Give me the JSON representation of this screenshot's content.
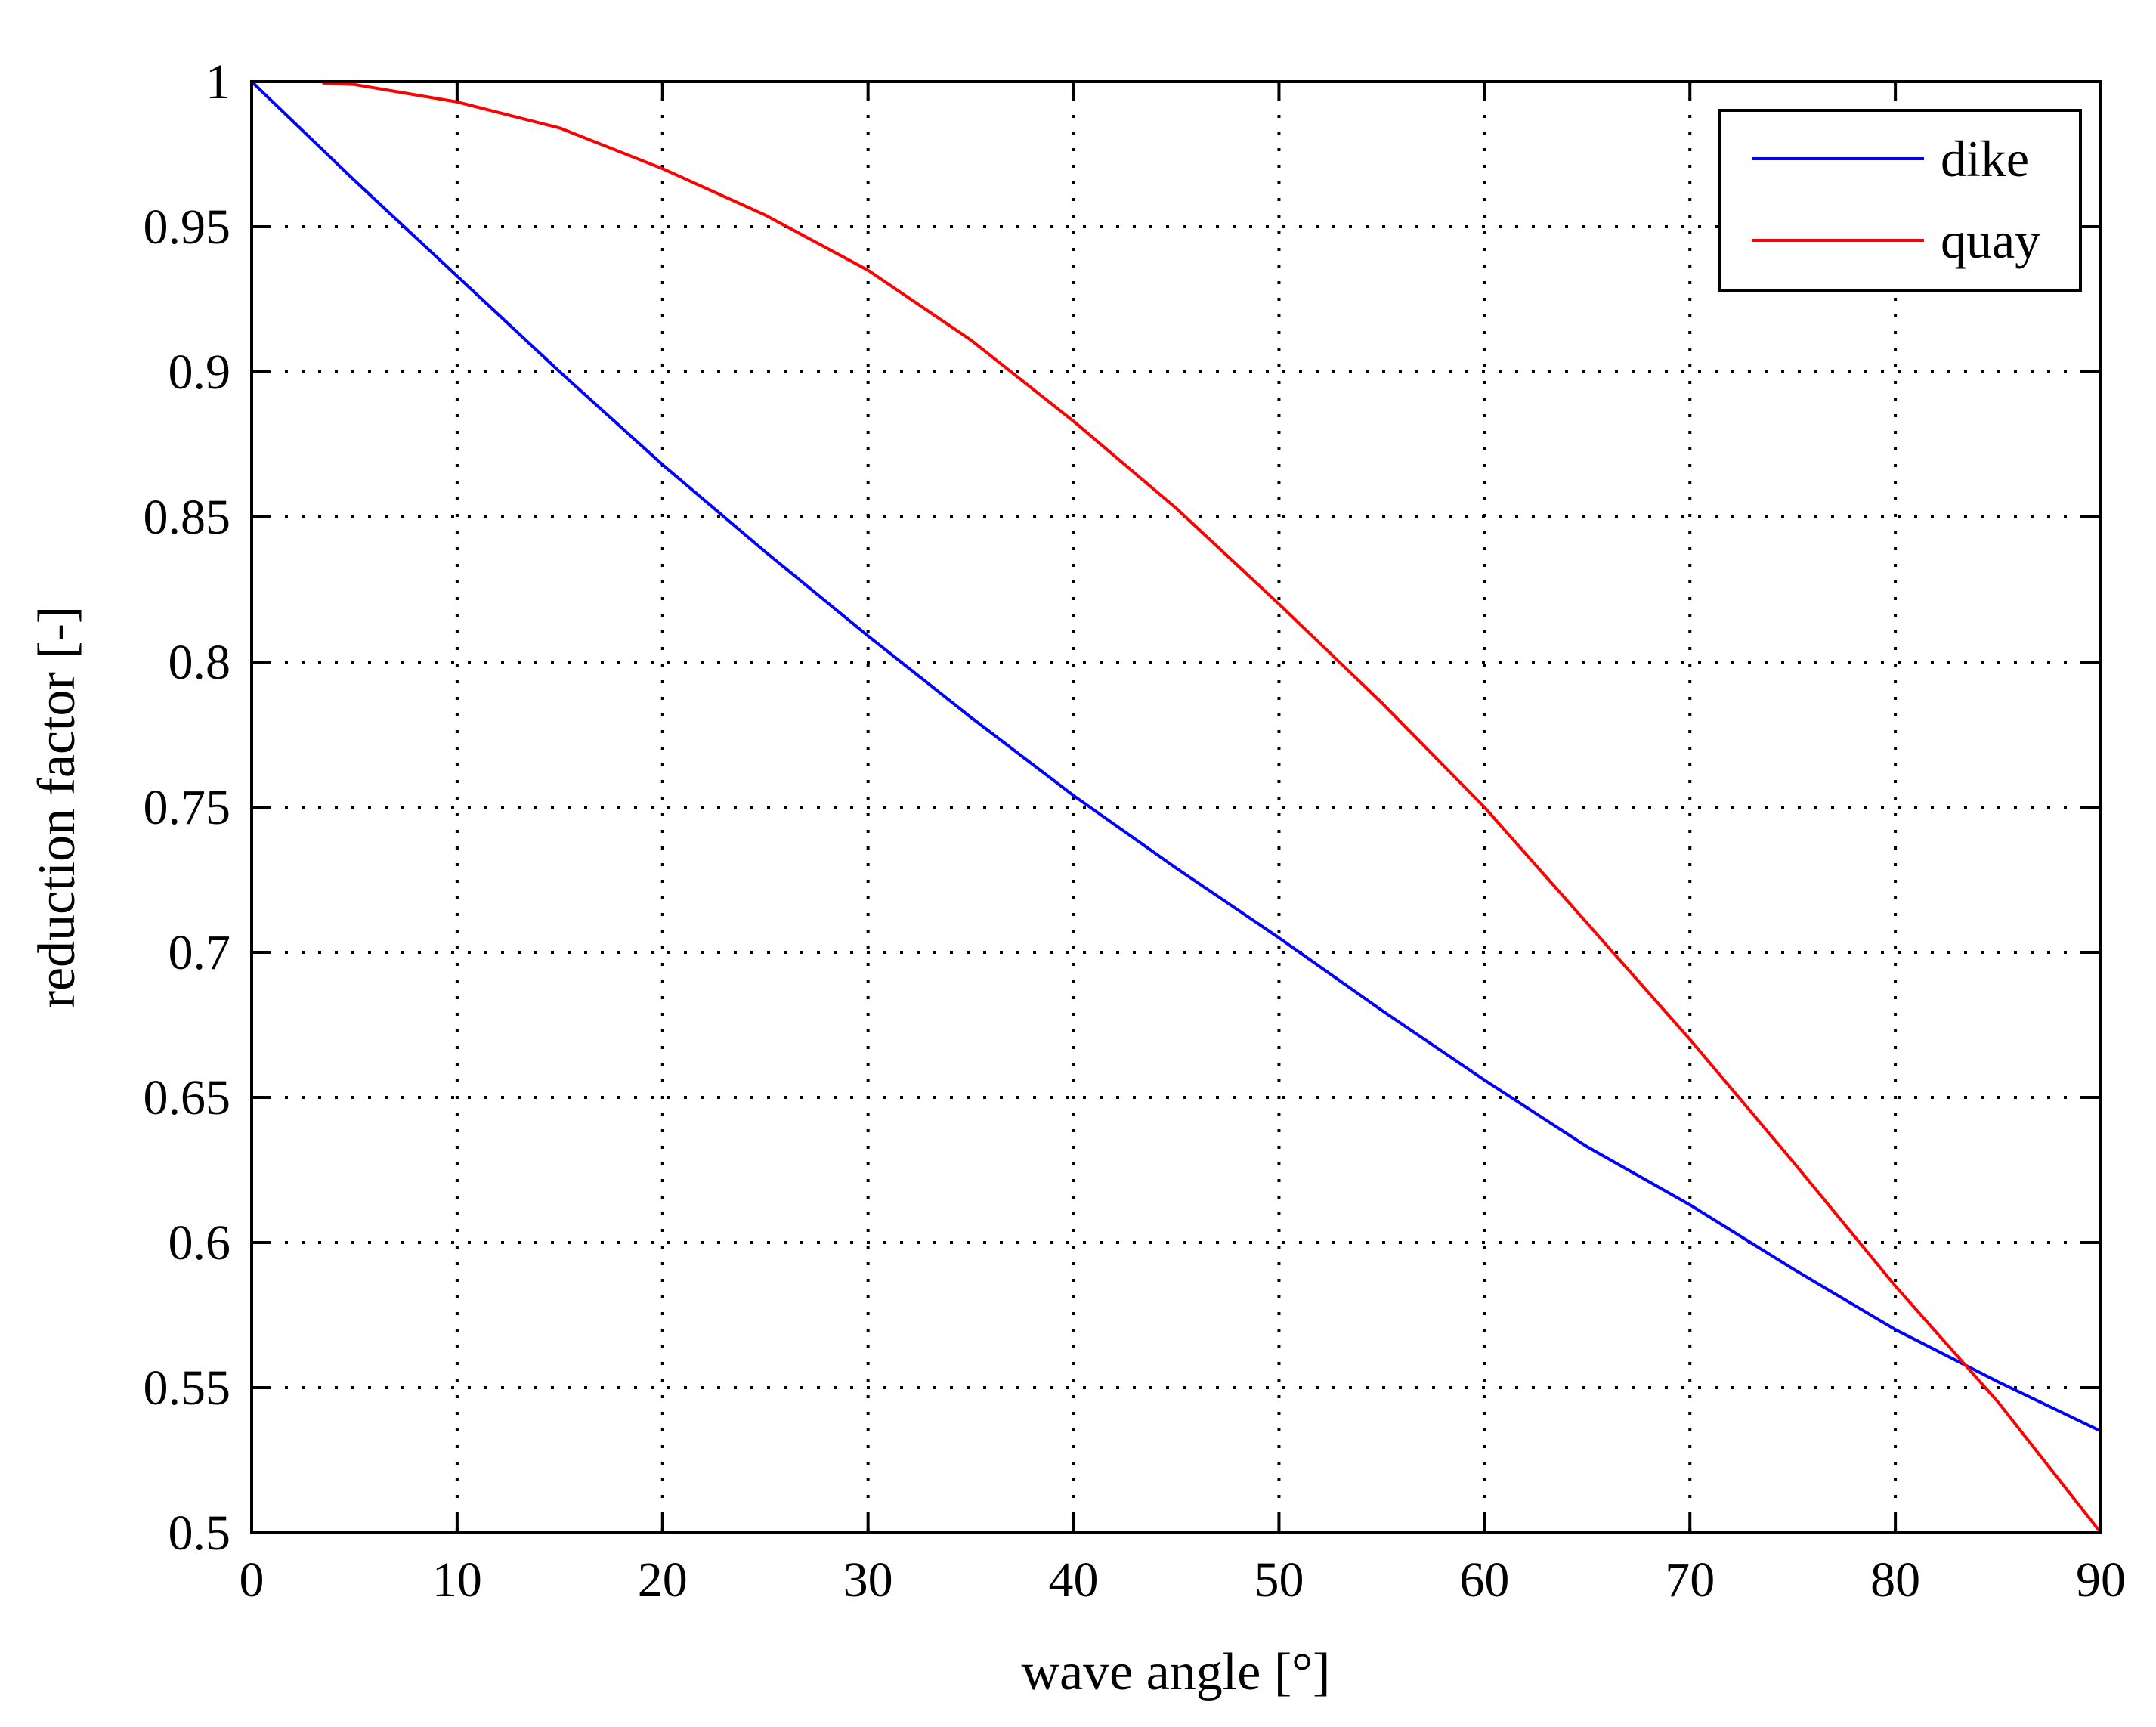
{
  "chart_data": {
    "type": "line",
    "title": "",
    "xlabel": "wave angle [°]",
    "ylabel": "reduction factor [-]",
    "xlim": [
      0,
      90
    ],
    "ylim": [
      0.5,
      1
    ],
    "grid": true,
    "legend_position": "top-right",
    "x_ticks": [
      0,
      10,
      20,
      30,
      40,
      50,
      60,
      70,
      80,
      90
    ],
    "x_tick_labels": [
      "0",
      "10",
      "20",
      "30",
      "40",
      "50",
      "60",
      "70",
      "80",
      "90"
    ],
    "y_ticks": [
      0.5,
      0.55,
      0.6,
      0.65,
      0.7,
      0.75,
      0.8,
      0.85,
      0.9,
      0.95,
      1
    ],
    "y_tick_labels": [
      "0.5",
      "0.55",
      "0.6",
      "0.65",
      "0.7",
      "0.75",
      "0.8",
      "0.85",
      "0.9",
      "0.95",
      "1"
    ],
    "series": [
      {
        "name": "dike",
        "color": "#0000ff",
        "x": [
          0,
          5,
          10,
          15,
          20,
          25,
          30,
          35,
          40,
          45,
          50,
          55,
          60,
          65,
          70,
          75,
          80,
          85,
          90
        ],
        "y": [
          1.0,
          0.966,
          0.933,
          0.9,
          0.868,
          0.838,
          0.809,
          0.781,
          0.754,
          0.729,
          0.705,
          0.68,
          0.656,
          0.633,
          0.613,
          0.591,
          0.57,
          0.552,
          0.535
        ]
      },
      {
        "name": "quay",
        "color": "#ff0000",
        "x": [
          3.5,
          5,
          10,
          15,
          20,
          25,
          30,
          35,
          40,
          45,
          50,
          55,
          60,
          65,
          70,
          75,
          80,
          85,
          90
        ],
        "y": [
          0.9995,
          0.999,
          0.993,
          0.984,
          0.97,
          0.954,
          0.935,
          0.911,
          0.883,
          0.853,
          0.82,
          0.786,
          0.75,
          0.71,
          0.67,
          0.628,
          0.585,
          0.545,
          0.5
        ]
      }
    ]
  }
}
